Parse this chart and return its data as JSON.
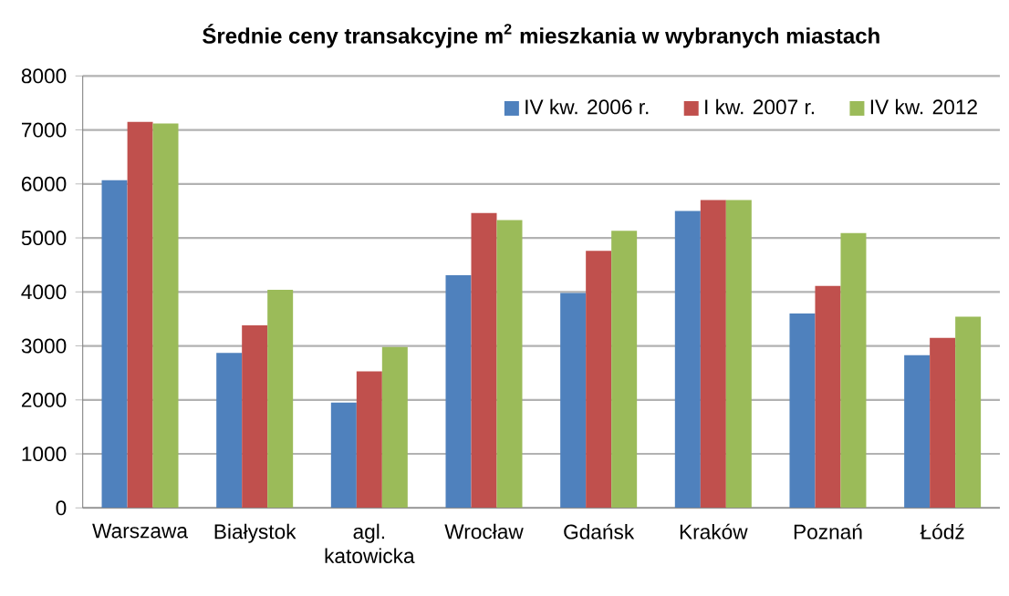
{
  "chart_data": {
    "type": "bar",
    "title": "Średnie ceny transakcyjne m$^{2}$ mieszkania w wybranych miastach",
    "categories": [
      "Warszawa",
      "Białystok",
      "agl. katowicka",
      "Wrocław",
      "Gdańsk",
      "Kraków",
      "Poznań",
      "Łódź"
    ],
    "series": [
      {
        "name": "IV kw. 2006 r.",
        "color": "#4f81bd",
        "values": [
          6070,
          2870,
          1950,
          4310,
          3980,
          5500,
          3600,
          2830
        ]
      },
      {
        "name": "I kw. 2007 r.",
        "color": "#c0504d",
        "values": [
          7150,
          3380,
          2530,
          5460,
          4760,
          5700,
          4110,
          3150
        ]
      },
      {
        "name": "IV kw. 2012",
        "color": "#9bbb59",
        "values": [
          7120,
          4040,
          2980,
          5330,
          5130,
          5700,
          5090,
          3540
        ]
      }
    ],
    "ylim": [
      0,
      8000
    ],
    "yticks": [
      0,
      1000,
      2000,
      3000,
      4000,
      5000,
      6000,
      7000,
      8000
    ],
    "grid": "y",
    "legend": "top right"
  }
}
